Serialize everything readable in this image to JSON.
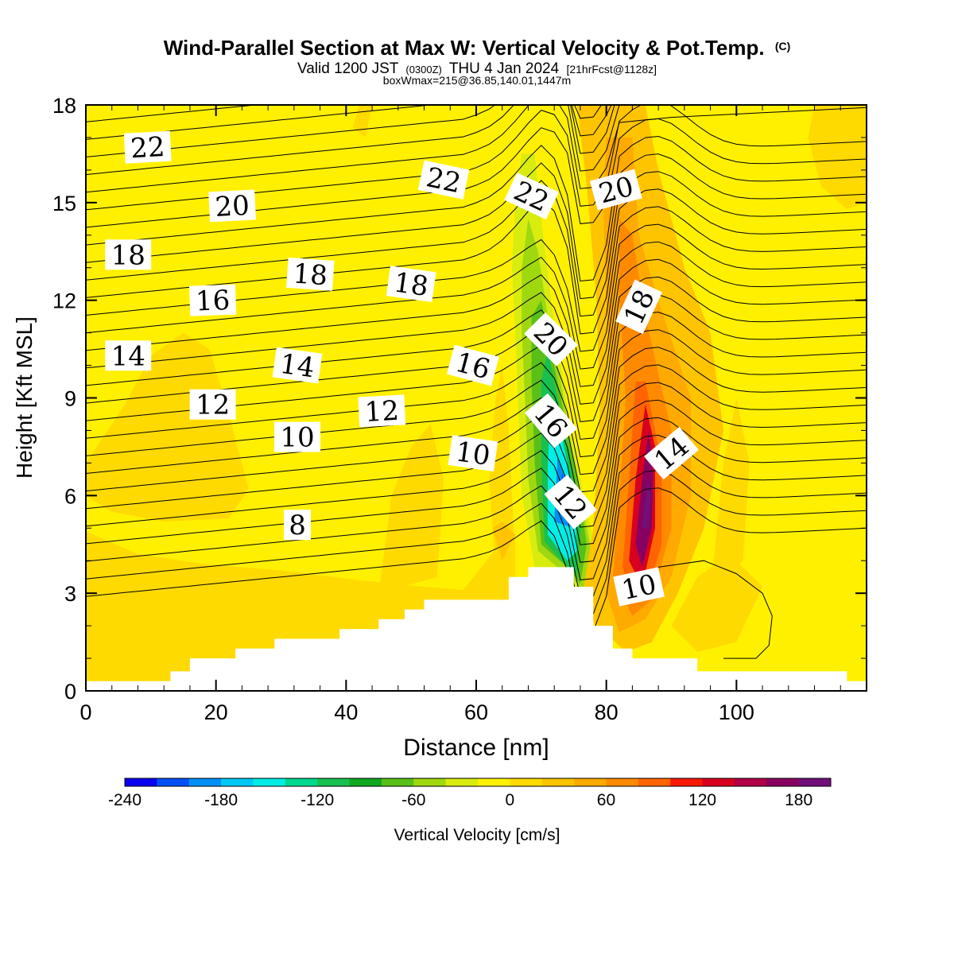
{
  "chart_data": {
    "type": "heatmap",
    "title": "Wind-Parallel Section at Max W: Vertical Velocity & Pot.Temp.",
    "title_unit": "(C)",
    "subtitle": {
      "valid": "Valid 1200 JST",
      "utc": "(0300Z)",
      "date": "THU 4 Jan 2024",
      "forecast": "[21hrFcst@1128z]"
    },
    "box_info": "boxWmax=215@36.85,140.01,1447m",
    "xlabel": "Distance [nm]",
    "ylabel": "Height [Kft MSL]",
    "xlim": [
      0,
      120
    ],
    "ylim": [
      0,
      18
    ],
    "x_ticks": [
      0,
      20,
      40,
      60,
      80,
      100
    ],
    "y_ticks": [
      0,
      3,
      6,
      9,
      12,
      15,
      18
    ],
    "colorbar": {
      "label": "Vertical Velocity [cm/s]",
      "min": -240,
      "max": 200,
      "step": 20,
      "tick_values": [
        -240,
        -180,
        -120,
        -60,
        0,
        60,
        120,
        180
      ],
      "colors": [
        "#0a00f0",
        "#0050f5",
        "#0090f5",
        "#00c8f5",
        "#00eee6",
        "#00d890",
        "#18c050",
        "#10a820",
        "#58c018",
        "#a0d810",
        "#d8ec10",
        "#fff000",
        "#ffda00",
        "#ffc400",
        "#ffaa00",
        "#ff8a00",
        "#ff6400",
        "#f81800",
        "#d80020",
        "#b00048",
        "#880060",
        "#701078"
      ]
    },
    "terrain_profile": [
      [
        0,
        0.3
      ],
      [
        13,
        0.3
      ],
      [
        13,
        0.6
      ],
      [
        16,
        0.6
      ],
      [
        16,
        1.0
      ],
      [
        23,
        1.0
      ],
      [
        23,
        1.3
      ],
      [
        29,
        1.3
      ],
      [
        29,
        1.6
      ],
      [
        39,
        1.6
      ],
      [
        39,
        1.9
      ],
      [
        45,
        1.9
      ],
      [
        45,
        2.2
      ],
      [
        49,
        2.2
      ],
      [
        49,
        2.5
      ],
      [
        52,
        2.5
      ],
      [
        52,
        2.8
      ],
      [
        65,
        2.8
      ],
      [
        65,
        3.5
      ],
      [
        68,
        3.5
      ],
      [
        68,
        3.8
      ],
      [
        75,
        3.8
      ],
      [
        75,
        3.2
      ],
      [
        78,
        3.2
      ],
      [
        78,
        2.0
      ],
      [
        81,
        2.0
      ],
      [
        81,
        1.3
      ],
      [
        84,
        1.3
      ],
      [
        84,
        1.0
      ],
      [
        94,
        1.0
      ],
      [
        94,
        0.6
      ],
      [
        117,
        0.6
      ],
      [
        117,
        0.3
      ],
      [
        120,
        0.3
      ]
    ],
    "contour_labels": [
      {
        "value": "22",
        "x": 9.5,
        "y": 16.7,
        "angle": -3
      },
      {
        "value": "20",
        "x": 22.5,
        "y": 14.9,
        "angle": -3
      },
      {
        "value": "18",
        "x": 6.5,
        "y": 13.4,
        "angle": 0
      },
      {
        "value": "18",
        "x": 34.5,
        "y": 12.8,
        "angle": 4
      },
      {
        "value": "18",
        "x": 50,
        "y": 12.5,
        "angle": 8
      },
      {
        "value": "16",
        "x": 19.5,
        "y": 12.0,
        "angle": -2
      },
      {
        "value": "14",
        "x": 6.5,
        "y": 10.3,
        "angle": 0
      },
      {
        "value": "14",
        "x": 32.5,
        "y": 10.0,
        "angle": 8
      },
      {
        "value": "12",
        "x": 19.5,
        "y": 8.8,
        "angle": 0
      },
      {
        "value": "12",
        "x": 45.5,
        "y": 8.6,
        "angle": -3
      },
      {
        "value": "10",
        "x": 32.5,
        "y": 7.8,
        "angle": 0
      },
      {
        "value": "10",
        "x": 59.5,
        "y": 7.3,
        "angle": 8
      },
      {
        "value": "8",
        "x": 32.5,
        "y": 5.1,
        "angle": 0
      },
      {
        "value": "22",
        "x": 55,
        "y": 15.7,
        "angle": 12
      },
      {
        "value": "22",
        "x": 68.5,
        "y": 15.2,
        "angle": 25
      },
      {
        "value": "20",
        "x": 81.5,
        "y": 15.4,
        "angle": -15
      },
      {
        "value": "16",
        "x": 59.5,
        "y": 10.0,
        "angle": 15
      },
      {
        "value": "20",
        "x": 71.5,
        "y": 10.8,
        "angle": 45
      },
      {
        "value": "18",
        "x": 85,
        "y": 11.8,
        "angle": -65
      },
      {
        "value": "16",
        "x": 71.5,
        "y": 8.3,
        "angle": 50
      },
      {
        "value": "12",
        "x": 74.5,
        "y": 5.8,
        "angle": 50
      },
      {
        "value": "14",
        "x": 90,
        "y": 7.3,
        "angle": -40
      },
      {
        "value": "10",
        "x": 85,
        "y": 3.2,
        "angle": -12
      }
    ]
  }
}
